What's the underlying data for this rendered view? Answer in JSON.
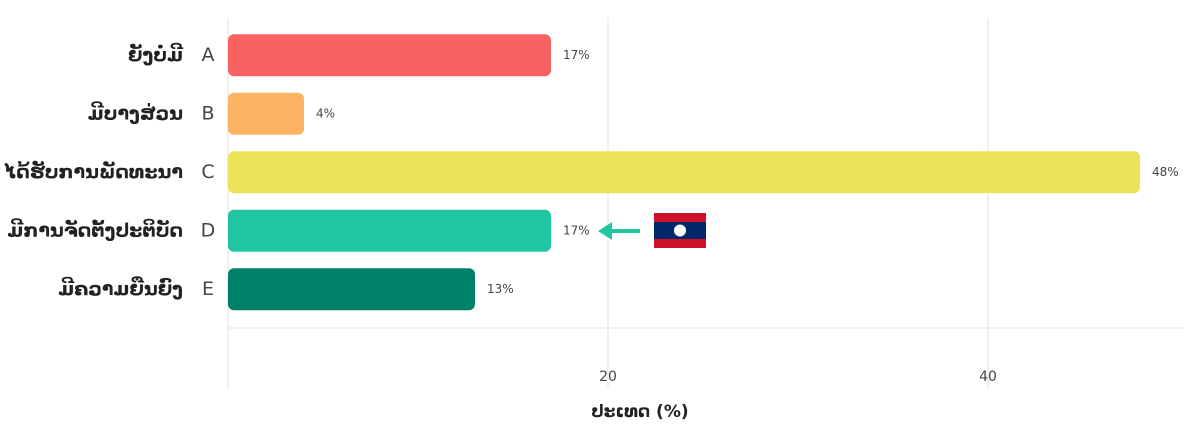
{
  "chart_data": {
    "type": "barh",
    "categories": [
      "ຍັງບໍ່ມີ",
      "ມີບາງສ່ວນ",
      "ໄດ້ຮັບການພັດທະນາ",
      "ມີການຈັດຕັ້ງປະຕິບັດ",
      "ມີຄວາມຍືນຍົງ"
    ],
    "letters": [
      "A",
      "B",
      "C",
      "D",
      "E"
    ],
    "values": [
      17,
      4,
      48,
      17,
      13
    ],
    "value_labels": [
      "17%",
      "4%",
      "48%",
      "17%",
      "13%"
    ],
    "colors": [
      "#f96262",
      "#fdb462",
      "#ede35a",
      "#20c6a0",
      "#00806a"
    ],
    "xlim": [
      0,
      50
    ],
    "xticks": [
      20,
      40
    ],
    "grid": true,
    "x_label": "ປະເທດ (%)"
  }
}
